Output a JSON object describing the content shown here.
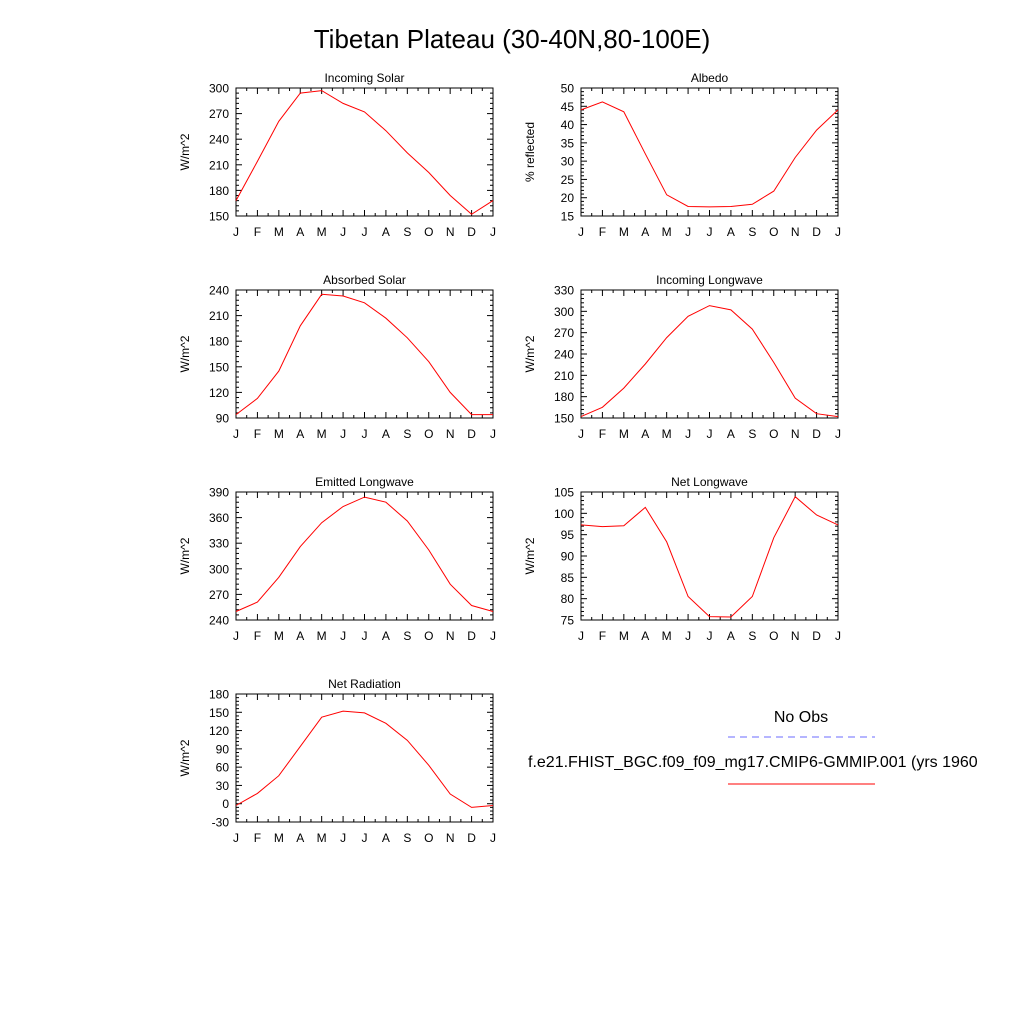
{
  "page": {
    "title": "Tibetan Plateau (30-40N,80-100E)"
  },
  "colors": {
    "model": "#ff0000",
    "obs": "#6b6bff",
    "axis": "#000000"
  },
  "months": [
    "J",
    "F",
    "M",
    "A",
    "M",
    "J",
    "J",
    "A",
    "S",
    "O",
    "N",
    "D",
    "J"
  ],
  "chart_data": [
    {
      "type": "line",
      "title": "Incoming Solar",
      "ylabel": "W/m^2",
      "ylim": [
        150,
        300
      ],
      "yticks": [
        150,
        180,
        210,
        240,
        270,
        300
      ],
      "series": [
        {
          "values": [
            168,
            214,
            261,
            294,
            297,
            282,
            272,
            250,
            224,
            201,
            174,
            152,
            168
          ]
        }
      ]
    },
    {
      "type": "line",
      "title": "Albedo",
      "ylabel": "% reflected",
      "ylim": [
        15,
        50
      ],
      "yticks": [
        15,
        20,
        25,
        30,
        35,
        40,
        45,
        50
      ],
      "series": [
        {
          "values": [
            44,
            46.2,
            43.5,
            32,
            20.8,
            17.6,
            17.5,
            17.6,
            18.2,
            21.8,
            31,
            38.5,
            44
          ]
        }
      ]
    },
    {
      "type": "line",
      "title": "Absorbed Solar",
      "ylabel": "W/m^2",
      "ylim": [
        90,
        240
      ],
      "yticks": [
        90,
        120,
        150,
        180,
        210,
        240
      ],
      "series": [
        {
          "values": [
            94,
            113,
            145,
            198,
            235,
            233,
            225,
            207,
            184,
            156,
            120,
            94,
            94
          ]
        }
      ]
    },
    {
      "type": "line",
      "title": "Incoming Longwave",
      "ylabel": "W/m^2",
      "ylim": [
        150,
        330
      ],
      "yticks": [
        150,
        180,
        210,
        240,
        270,
        300,
        330
      ],
      "series": [
        {
          "values": [
            152,
            165,
            192,
            226,
            263,
            293,
            308,
            302,
            275,
            228,
            178,
            156,
            152
          ]
        }
      ]
    },
    {
      "type": "line",
      "title": "Emitted Longwave",
      "ylabel": "W/m^2",
      "ylim": [
        240,
        390
      ],
      "yticks": [
        240,
        270,
        300,
        330,
        360,
        390
      ],
      "series": [
        {
          "values": [
            250,
            261,
            290,
            326,
            354,
            373,
            384,
            378,
            356,
            322,
            282,
            257,
            250
          ]
        }
      ]
    },
    {
      "type": "line",
      "title": "Net Longwave",
      "ylabel": "W/m^2",
      "ylim": [
        75,
        105
      ],
      "yticks": [
        75,
        80,
        85,
        90,
        95,
        100,
        105
      ],
      "series": [
        {
          "values": [
            97.3,
            96.9,
            97.1,
            101.4,
            93.3,
            80.5,
            75.8,
            75.7,
            80.5,
            94.3,
            103.9,
            99.6,
            97.3
          ]
        }
      ]
    },
    {
      "type": "line",
      "title": "Net Radiation",
      "ylabel": "W/m^2",
      "ylim": [
        -30,
        180
      ],
      "yticks": [
        -30,
        0,
        30,
        60,
        90,
        120,
        150,
        180
      ],
      "series": [
        {
          "values": [
            -3,
            17,
            46,
            94,
            142,
            152,
            149,
            132,
            104,
            63,
            16,
            -6,
            -3
          ]
        }
      ]
    }
  ],
  "legend": {
    "obs_label": "No Obs",
    "model_label": "f.e21.FHIST_BGC.f09_f09_mg17.CMIP6-GMMIP.001 (yrs 1960"
  }
}
